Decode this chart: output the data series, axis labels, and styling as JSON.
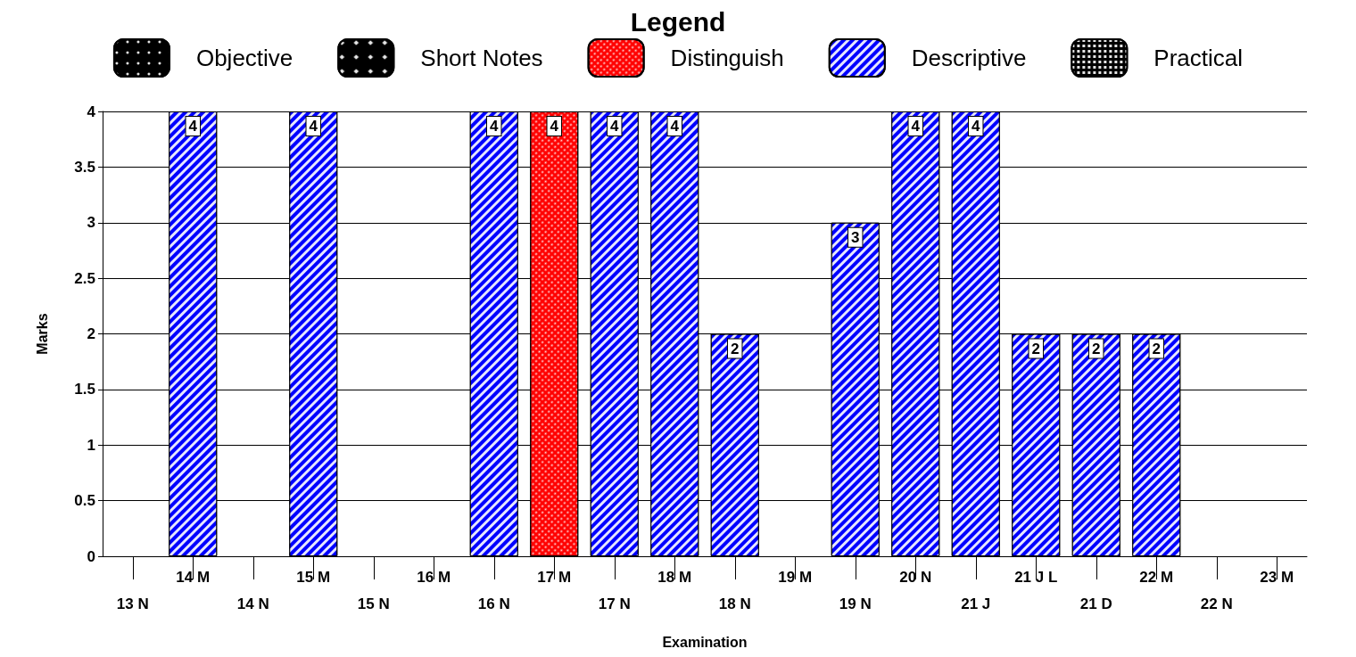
{
  "chart_data": {
    "type": "bar",
    "legend_title": "Legend",
    "xlabel": "Examination",
    "ylabel": "Marks",
    "categories": [
      "13 N",
      "14 M",
      "14 N",
      "15 M",
      "15 N",
      "16 M",
      "16 N",
      "17 M",
      "17 N",
      "18 M",
      "18 N",
      "19 M",
      "19 N",
      "20 N",
      "21 J",
      "21 J L",
      "21 D",
      "22 M",
      "22 N",
      "23 M"
    ],
    "series": [
      {
        "name": "Objective",
        "color": "#000000",
        "values": [
          null,
          null,
          null,
          null,
          null,
          null,
          null,
          null,
          null,
          null,
          null,
          null,
          null,
          null,
          null,
          null,
          null,
          null,
          null,
          null
        ]
      },
      {
        "name": "Short Notes",
        "color": "#000000",
        "values": [
          null,
          null,
          null,
          null,
          null,
          null,
          null,
          null,
          null,
          null,
          null,
          null,
          null,
          null,
          null,
          null,
          null,
          null,
          null,
          null
        ]
      },
      {
        "name": "Distinguish",
        "color": "#ff0000",
        "values": [
          null,
          null,
          null,
          null,
          null,
          null,
          null,
          4,
          null,
          null,
          null,
          null,
          null,
          null,
          null,
          null,
          null,
          null,
          null,
          null
        ]
      },
      {
        "name": "Descriptive",
        "color": "#0000ff",
        "values": [
          null,
          4,
          null,
          4,
          null,
          null,
          4,
          null,
          4,
          4,
          2,
          null,
          3,
          4,
          4,
          2,
          2,
          2,
          null,
          null
        ]
      },
      {
        "name": "Practical",
        "color": "#000000",
        "values": [
          null,
          null,
          null,
          null,
          null,
          null,
          null,
          null,
          null,
          null,
          null,
          null,
          null,
          null,
          null,
          null,
          null,
          null,
          null,
          null
        ]
      }
    ],
    "stacked": true,
    "ylim": [
      0,
      4
    ],
    "yticks": [
      0,
      0.5,
      1,
      1.5,
      2,
      2.5,
      3,
      3.5,
      4
    ],
    "grid": "y",
    "legend": "top",
    "data_labels": true
  }
}
